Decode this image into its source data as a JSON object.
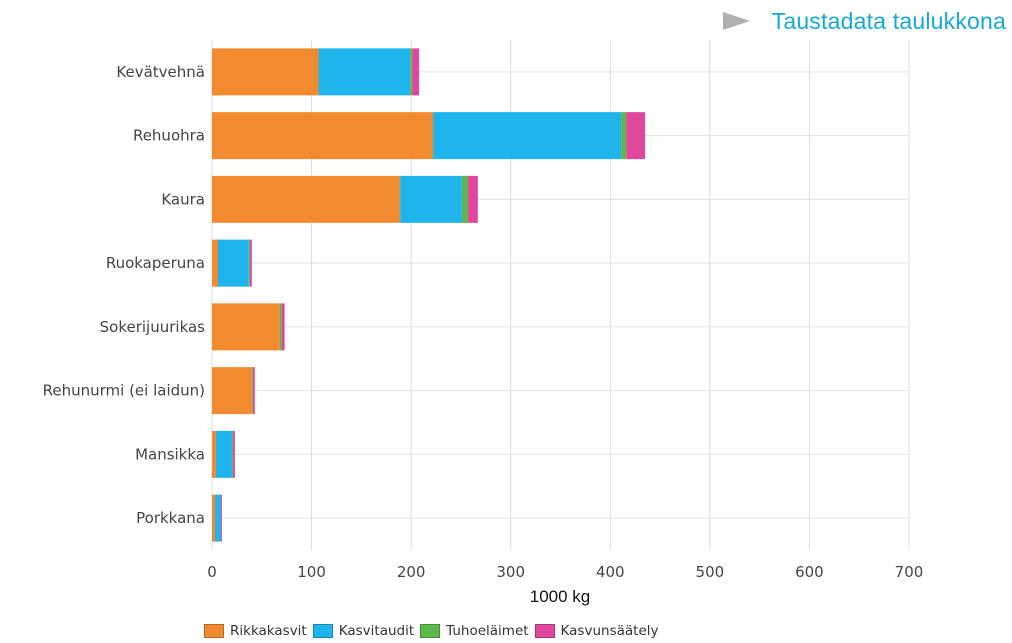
{
  "link": {
    "label": "Taustadata taulukkona"
  },
  "chart_data": {
    "type": "bar",
    "orientation": "horizontal",
    "stacked": true,
    "categories": [
      "Kevätvehnä",
      "Rehuohra",
      "Kaura",
      "Ruokaperuna",
      "Sokerijuurikas",
      "Rehunurmi (ei laidun)",
      "Mansikka",
      "Porkkana"
    ],
    "series": [
      {
        "name": "Rikkakasvit",
        "color": "#f28b30",
        "values": [
          107,
          222,
          189,
          6,
          68,
          40,
          4,
          3
        ]
      },
      {
        "name": "Kasvitaudit",
        "color": "#1fb5ec",
        "values": [
          92,
          189,
          62,
          31,
          0,
          0,
          16,
          6
        ]
      },
      {
        "name": "Tuhoeläimet",
        "color": "#5cb849",
        "values": [
          2,
          5,
          6,
          1,
          2,
          1,
          1,
          0
        ]
      },
      {
        "name": "Kasvunsäätely",
        "color": "#e0489e",
        "values": [
          7,
          19,
          10,
          2,
          3,
          2,
          2,
          1
        ]
      }
    ],
    "xlabel": "1000 kg",
    "xlim": [
      0,
      700
    ],
    "xticks": [
      0,
      100,
      200,
      300,
      400,
      500,
      600,
      700
    ],
    "grid": true,
    "legend": "bottom"
  }
}
